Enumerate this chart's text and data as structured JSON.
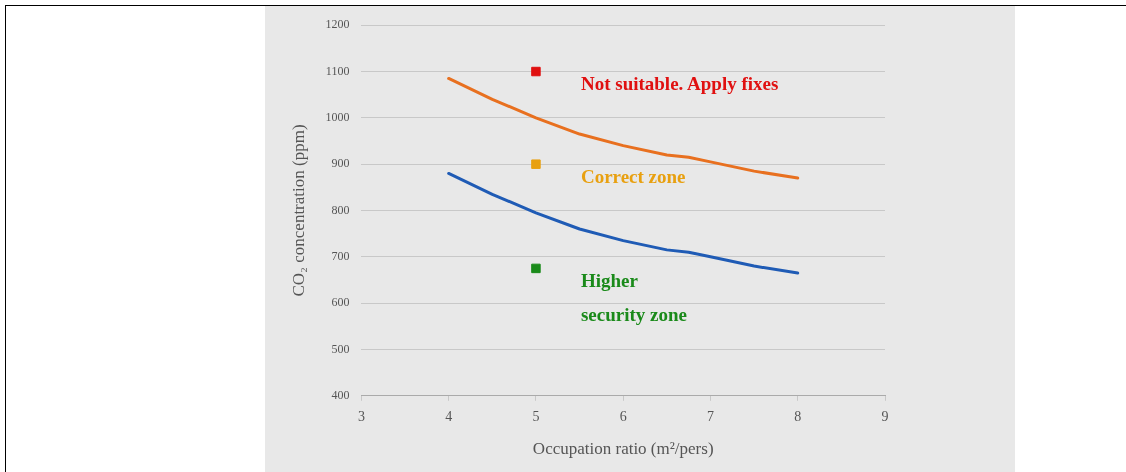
{
  "chart_data": {
    "type": "line",
    "xlabel": "Occupation ratio (m²/pers)",
    "ylabel": "CO₂ concentration (ppm)",
    "xlim": [
      3,
      9
    ],
    "xticks": [
      3,
      4,
      5,
      6,
      7,
      8,
      9
    ],
    "ylim": [
      400,
      1200
    ],
    "yticks": [
      400,
      500,
      600,
      700,
      800,
      900,
      1000,
      1100,
      1200
    ],
    "grid": "y",
    "legend": false,
    "line_style": "solid",
    "series": [
      {
        "color": "#e8701f",
        "x": [
          4,
          4.5,
          5,
          5.5,
          6,
          6.5,
          6.75,
          7,
          7.5,
          8
        ],
        "values": [
          1085,
          1040,
          1000,
          965,
          940,
          920,
          915,
          905,
          885,
          870
        ]
      },
      {
        "color": "#1f5bb5",
        "x": [
          4,
          4.5,
          5,
          5.5,
          6,
          6.5,
          6.75,
          7,
          7.5,
          8
        ],
        "values": [
          880,
          835,
          795,
          760,
          735,
          715,
          710,
          700,
          680,
          665
        ]
      },
      {
        "type": "scatter",
        "marker": "square",
        "x": [
          5,
          5,
          5
        ],
        "values": [
          1100,
          900,
          675
        ],
        "colors": [
          "#e01010",
          "#e8a010",
          "#1a8a1a"
        ]
      }
    ],
    "annotations": [
      "Not suitable. Apply fixes",
      "Correct zone",
      "Higher security zone"
    ]
  }
}
